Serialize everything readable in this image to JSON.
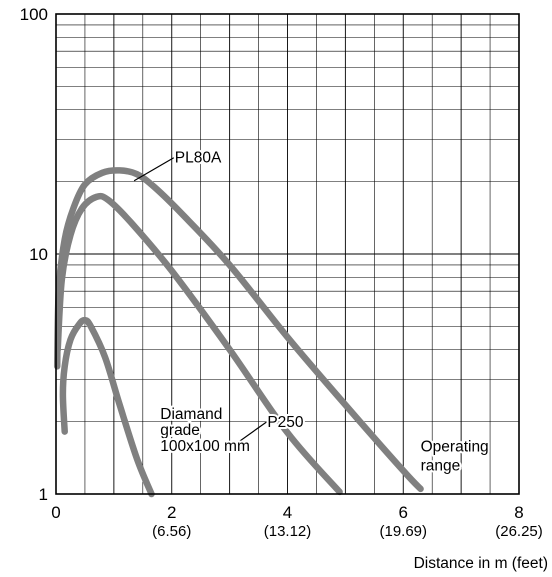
{
  "chart_data": {
    "type": "line",
    "yscale": "log",
    "xlim": [
      0,
      8
    ],
    "ylim": [
      1,
      100
    ],
    "grid": true,
    "xlabel": "Distance in m (feet)",
    "ylabel": "",
    "title": "",
    "x_ticks": [
      {
        "value": 0,
        "label": "0",
        "sublabel": ""
      },
      {
        "value": 2,
        "label": "2",
        "sublabel": "(6.56)"
      },
      {
        "value": 4,
        "label": "4",
        "sublabel": "(13.12)"
      },
      {
        "value": 6,
        "label": "6",
        "sublabel": "(19.69)"
      },
      {
        "value": 8,
        "label": "8",
        "sublabel": "(26.25)"
      }
    ],
    "y_ticks": [
      {
        "value": 1,
        "label": "1"
      },
      {
        "value": 10,
        "label": "10"
      },
      {
        "value": 100,
        "label": "100"
      }
    ],
    "annotation": "Operating range",
    "annotation_lines": [
      "Operating",
      "range"
    ],
    "series_color": "#808080",
    "series": [
      {
        "name": "PL80A",
        "label_lines": [
          "PL80A"
        ],
        "points": [
          [
            0.02,
            3.4
          ],
          [
            0.05,
            7.2
          ],
          [
            0.15,
            11.5
          ],
          [
            0.3,
            15.5
          ],
          [
            0.5,
            19.5
          ],
          [
            0.8,
            21.8
          ],
          [
            1.1,
            22.3
          ],
          [
            1.4,
            21.5
          ],
          [
            1.7,
            19.0
          ],
          [
            2.2,
            14.5
          ],
          [
            3.0,
            9.0
          ],
          [
            4.0,
            4.5
          ],
          [
            5.0,
            2.35
          ],
          [
            6.0,
            1.25
          ],
          [
            6.3,
            1.05
          ]
        ]
      },
      {
        "name": "P250",
        "label_lines": [
          "P250"
        ],
        "points": [
          [
            0.03,
            4.0
          ],
          [
            0.1,
            7.8
          ],
          [
            0.25,
            12.0
          ],
          [
            0.45,
            15.5
          ],
          [
            0.7,
            17.3
          ],
          [
            0.9,
            16.8
          ],
          [
            1.3,
            13.5
          ],
          [
            2.0,
            8.5
          ],
          [
            3.0,
            4.0
          ],
          [
            4.0,
            1.8
          ],
          [
            4.9,
            1.02
          ]
        ]
      },
      {
        "name": "Diamand grade 100x100 mm",
        "label_lines": [
          "Diamand",
          "grade",
          "100x100 mm"
        ],
        "points": [
          [
            0.15,
            1.82
          ],
          [
            0.12,
            2.6
          ],
          [
            0.15,
            3.4
          ],
          [
            0.25,
            4.4
          ],
          [
            0.4,
            5.1
          ],
          [
            0.5,
            5.3
          ],
          [
            0.6,
            5.0
          ],
          [
            0.85,
            3.7
          ],
          [
            1.1,
            2.35
          ],
          [
            1.4,
            1.4
          ],
          [
            1.65,
            1.0
          ]
        ]
      }
    ],
    "series_labels": [
      {
        "series": 0,
        "text_x": 2.0,
        "text_y": 24.0,
        "leader_to": [
          1.35,
          20.2
        ]
      },
      {
        "series": 1,
        "text_x": 3.6,
        "text_y": 1.9,
        "leader_to": [
          3.0,
          1.55
        ]
      },
      {
        "series": 2,
        "text_x": 1.75,
        "text_y": 2.05,
        "leader_to": null
      }
    ],
    "annotation_pos": {
      "x": 6.3,
      "y": 1.5
    }
  }
}
